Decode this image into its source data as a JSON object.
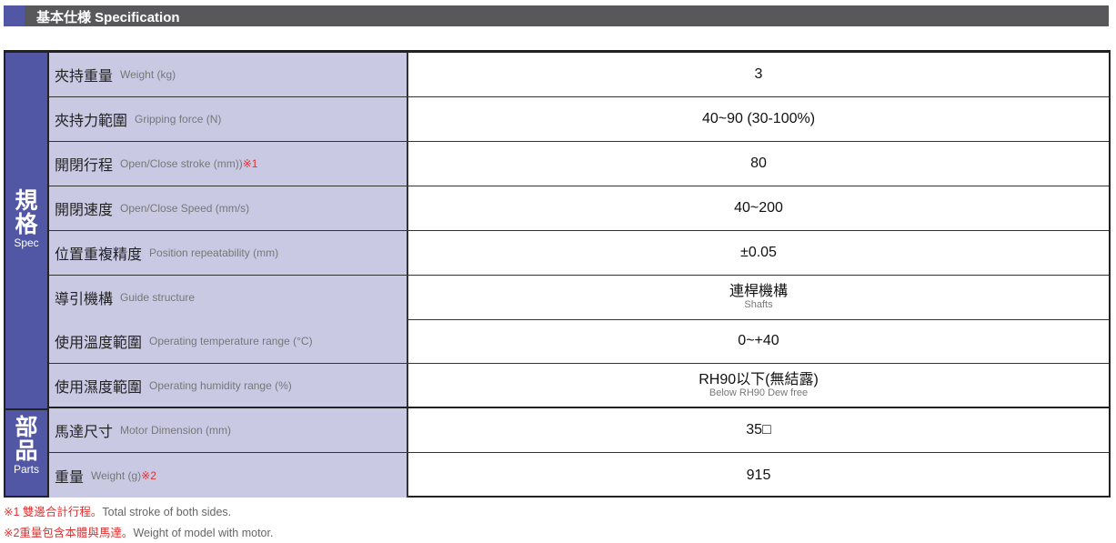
{
  "header": {
    "title": "基本仕様 Specification",
    "accent": "#5157a5",
    "bar_color": "#58585a"
  },
  "categories": {
    "spec": {
      "zh1": "規",
      "zh2": "格",
      "en": "Spec"
    },
    "parts": {
      "zh1": "部",
      "zh2": "品",
      "en": "Parts"
    }
  },
  "rows": [
    {
      "zh": "夾持重量",
      "en": "Weight (kg)",
      "note": "",
      "value": "3",
      "sub": ""
    },
    {
      "zh": "夾持力範圍",
      "en": "Gripping force (N)",
      "note": "",
      "value": "40~90 (30-100%)",
      "sub": ""
    },
    {
      "zh": "開閉行程",
      "en": "Open/Close  stroke (mm))",
      "note": "※1",
      "value": "80",
      "sub": ""
    },
    {
      "zh": "開閉速度",
      "en": "Open/Close Speed (mm/s)",
      "note": "",
      "value": "40~200",
      "sub": ""
    },
    {
      "zh": "位置重複精度",
      "en": "Position repeatability (mm)",
      "note": "",
      "value": "±0.05",
      "sub": ""
    },
    {
      "zh": "導引機構",
      "en": "Guide structure",
      "note": "",
      "value": "連桿機構",
      "sub": "Shafts"
    },
    {
      "zh": "使用溫度範圍",
      "en": "Operating temperature range (°C)",
      "note": "",
      "value": "0~+40",
      "sub": ""
    },
    {
      "zh": "使用濕度範圍",
      "en": "Operating humidity range (%)",
      "note": "",
      "value": "RH90以下(無結露)",
      "sub": "Below RH90 Dew free"
    },
    {
      "zh": "馬達尺寸",
      "en": "Motor Dimension (mm)",
      "note": "",
      "value": "35□",
      "sub": ""
    },
    {
      "zh": "重量",
      "en": "Weight (g)",
      "note": "※2",
      "value": "915",
      "sub": ""
    }
  ],
  "footnotes": [
    {
      "red": "※1 雙邊合計行程。",
      "gray": "Total stroke of both sides."
    },
    {
      "red": "※2重量包含本體與馬達。",
      "gray": "Weight of model with motor."
    }
  ]
}
